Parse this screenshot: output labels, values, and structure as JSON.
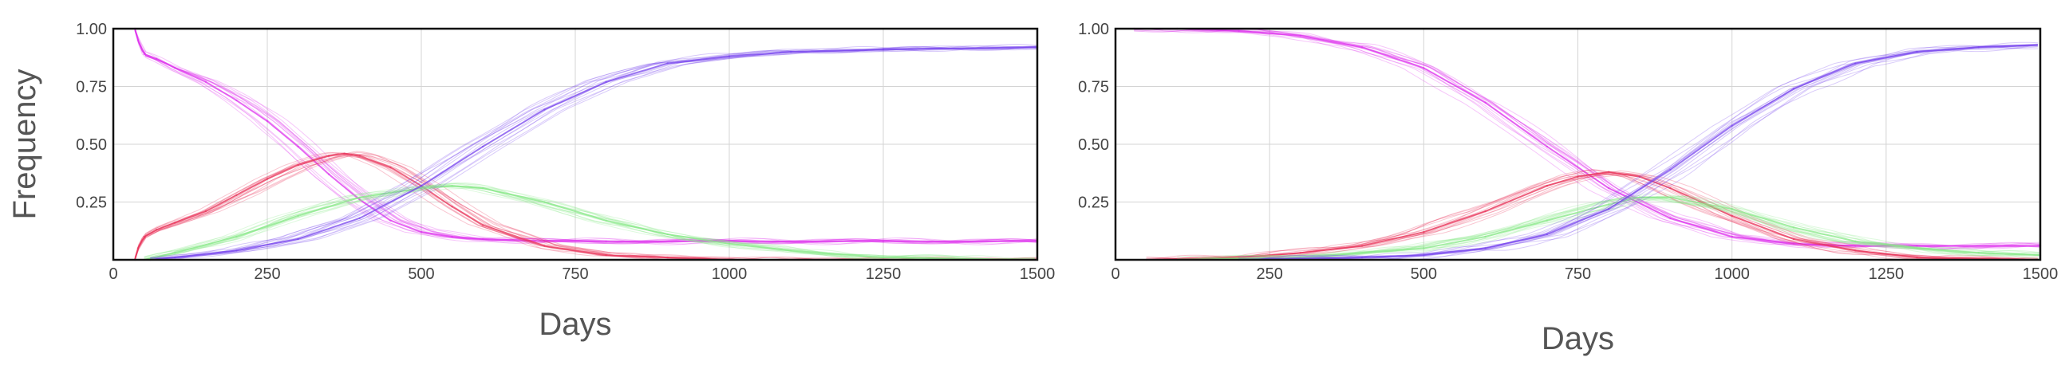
{
  "chart_data": [
    {
      "type": "line",
      "title": "",
      "xlabel": "Days",
      "ylabel": "Frequency",
      "xlim": [
        0,
        1500
      ],
      "ylim": [
        0,
        1.0
      ],
      "xticks": [
        "0",
        "250",
        "500",
        "750",
        "1000",
        "1250",
        "1500"
      ],
      "yticks": [
        "0.25",
        "0.50",
        "0.75",
        "1.00"
      ],
      "grid": true,
      "legend": "none",
      "series": [
        {
          "color": "#dd33ee",
          "x": [
            35,
            40,
            50,
            70,
            100,
            150,
            200,
            250,
            300,
            350,
            400,
            450,
            500,
            550,
            600,
            700,
            800,
            1000,
            1250,
            1500
          ],
          "y": [
            1.0,
            0.95,
            0.89,
            0.87,
            0.83,
            0.77,
            0.69,
            0.6,
            0.49,
            0.37,
            0.26,
            0.17,
            0.12,
            0.1,
            0.09,
            0.08,
            0.08,
            0.08,
            0.08,
            0.08
          ]
        },
        {
          "color": "#e8345a",
          "x": [
            35,
            40,
            50,
            70,
            100,
            150,
            200,
            250,
            300,
            350,
            375,
            400,
            450,
            500,
            550,
            600,
            700,
            800,
            900,
            1000,
            1500
          ],
          "y": [
            0.0,
            0.05,
            0.1,
            0.13,
            0.16,
            0.21,
            0.28,
            0.35,
            0.41,
            0.45,
            0.46,
            0.45,
            0.4,
            0.32,
            0.23,
            0.15,
            0.06,
            0.02,
            0.01,
            0.0,
            0.0
          ]
        },
        {
          "color": "#88e888",
          "x": [
            50,
            100,
            200,
            300,
            400,
            500,
            550,
            600,
            700,
            800,
            900,
            1000,
            1100,
            1250,
            1500
          ],
          "y": [
            0.0,
            0.03,
            0.1,
            0.19,
            0.27,
            0.31,
            0.32,
            0.31,
            0.25,
            0.17,
            0.11,
            0.07,
            0.04,
            0.01,
            0.0
          ]
        },
        {
          "color": "#7744ee",
          "x": [
            60,
            100,
            200,
            300,
            400,
            500,
            600,
            700,
            800,
            900,
            1000,
            1100,
            1250,
            1500
          ],
          "y": [
            0.0,
            0.01,
            0.04,
            0.09,
            0.18,
            0.32,
            0.49,
            0.65,
            0.77,
            0.85,
            0.88,
            0.9,
            0.91,
            0.92
          ]
        }
      ]
    },
    {
      "type": "line",
      "title": "",
      "xlabel": "Days",
      "ylabel": "",
      "xlim": [
        0,
        1500
      ],
      "ylim": [
        0,
        1.0
      ],
      "xticks": [
        "0",
        "250",
        "500",
        "750",
        "1000",
        "1250",
        "1500"
      ],
      "yticks": [
        "0.25",
        "0.50",
        "0.75",
        "1.00"
      ],
      "grid": true,
      "legend": "none",
      "series": [
        {
          "color": "#dd33ee",
          "x": [
            30,
            100,
            200,
            300,
            400,
            500,
            600,
            700,
            800,
            900,
            1000,
            1100,
            1200,
            1300,
            1500
          ],
          "y": [
            1.0,
            1.0,
            0.99,
            0.97,
            0.92,
            0.83,
            0.68,
            0.49,
            0.31,
            0.18,
            0.1,
            0.07,
            0.06,
            0.06,
            0.06
          ]
        },
        {
          "color": "#e8345a",
          "x": [
            50,
            200,
            300,
            400,
            500,
            600,
            700,
            750,
            800,
            850,
            900,
            1000,
            1100,
            1200,
            1300,
            1500
          ],
          "y": [
            0.0,
            0.01,
            0.03,
            0.06,
            0.12,
            0.21,
            0.32,
            0.36,
            0.38,
            0.36,
            0.31,
            0.19,
            0.09,
            0.04,
            0.01,
            0.0
          ]
        },
        {
          "color": "#88e888",
          "x": [
            100,
            300,
            500,
            600,
            700,
            800,
            850,
            900,
            1000,
            1100,
            1200,
            1300,
            1400,
            1500
          ],
          "y": [
            0.0,
            0.01,
            0.05,
            0.1,
            0.17,
            0.24,
            0.27,
            0.27,
            0.22,
            0.14,
            0.08,
            0.05,
            0.03,
            0.02
          ]
        },
        {
          "color": "#7744ee",
          "x": [
            200,
            400,
            500,
            600,
            700,
            800,
            900,
            1000,
            1100,
            1200,
            1300,
            1400,
            1500
          ],
          "y": [
            0.0,
            0.01,
            0.02,
            0.05,
            0.11,
            0.22,
            0.39,
            0.58,
            0.74,
            0.85,
            0.9,
            0.92,
            0.93
          ]
        }
      ]
    }
  ]
}
